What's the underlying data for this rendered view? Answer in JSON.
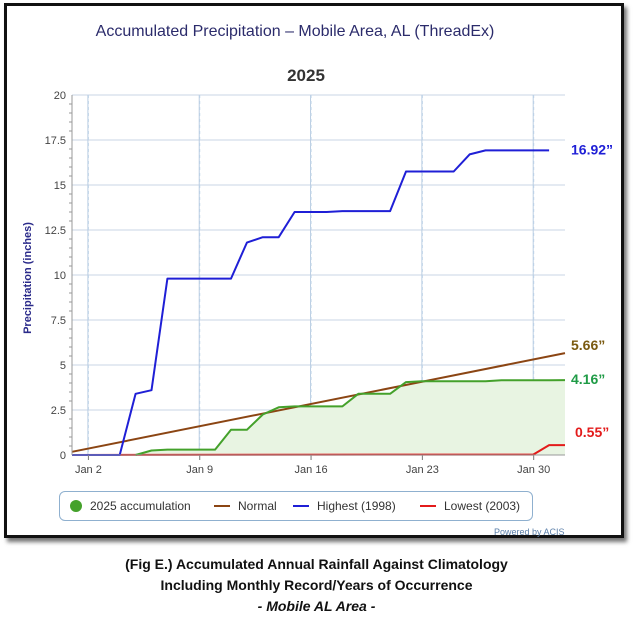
{
  "colors": {
    "accumulation": "#44a12b",
    "normal": "#8b4513",
    "highest": "#1f1fd6",
    "lowest": "#e31b1b",
    "accumulation_fill": "#e8f4e2",
    "title": "#2b2b6b",
    "axis_label": "#2b2b8a"
  },
  "chart_data": {
    "type": "line",
    "title": "Accumulated Precipitation – Mobile Area, AL (ThreadEx)",
    "subtitle": "2025",
    "ylabel": "Precipitation (inches)",
    "xlabel": "",
    "ylim": [
      0,
      20
    ],
    "yticks": [
      "0",
      "2.5",
      "5",
      "7.5",
      "10",
      "12.5",
      "15",
      "17.5",
      "20"
    ],
    "xlim": [
      1,
      31
    ],
    "xtick_days": [
      2,
      9,
      16,
      23,
      30
    ],
    "xticks": [
      "Jan 2",
      "Jan 9",
      "Jan 16",
      "Jan 23",
      "Jan 30"
    ],
    "grid": true,
    "legend_position": "bottom",
    "series": [
      {
        "name": "Highest (1998)",
        "key": "highest",
        "points": [
          [
            1,
            0
          ],
          [
            2,
            0
          ],
          [
            3,
            0
          ],
          [
            4,
            0
          ],
          [
            5,
            3.4
          ],
          [
            6,
            3.6
          ],
          [
            7,
            9.8
          ],
          [
            8,
            9.8
          ],
          [
            9,
            9.8
          ],
          [
            10,
            9.8
          ],
          [
            11,
            9.8
          ],
          [
            12,
            11.8
          ],
          [
            13,
            12.1
          ],
          [
            14,
            12.1
          ],
          [
            15,
            13.5
          ],
          [
            16,
            13.5
          ],
          [
            17,
            13.5
          ],
          [
            18,
            13.55
          ],
          [
            19,
            13.55
          ],
          [
            20,
            13.55
          ],
          [
            21,
            13.55
          ],
          [
            22,
            15.75
          ],
          [
            23,
            15.75
          ],
          [
            24,
            15.75
          ],
          [
            25,
            15.75
          ],
          [
            26,
            16.7
          ],
          [
            27,
            16.92
          ],
          [
            28,
            16.92
          ],
          [
            29,
            16.92
          ],
          [
            30,
            16.92
          ],
          [
            31,
            16.92
          ]
        ]
      },
      {
        "name": "Lowest (2003)",
        "key": "lowest",
        "points": [
          [
            1,
            0
          ],
          [
            22,
            0.02
          ],
          [
            30,
            0.02
          ],
          [
            31,
            0.55
          ],
          [
            32,
            0.55
          ]
        ]
      },
      {
        "name": "Normal",
        "key": "normal",
        "points": [
          [
            1,
            0.18
          ],
          [
            32,
            5.66
          ]
        ]
      },
      {
        "name": "2025 accumulation",
        "key": "accumulation",
        "points": [
          [
            5,
            0
          ],
          [
            6,
            0.25
          ],
          [
            7,
            0.3
          ],
          [
            8,
            0.3
          ],
          [
            9,
            0.3
          ],
          [
            10,
            0.3
          ],
          [
            11,
            1.4
          ],
          [
            12,
            1.4
          ],
          [
            13,
            2.25
          ],
          [
            14,
            2.65
          ],
          [
            15,
            2.7
          ],
          [
            16,
            2.7
          ],
          [
            17,
            2.7
          ],
          [
            18,
            2.7
          ],
          [
            19,
            3.4
          ],
          [
            20,
            3.4
          ],
          [
            21,
            3.4
          ],
          [
            22,
            4.05
          ],
          [
            23,
            4.1
          ],
          [
            24,
            4.1
          ],
          [
            25,
            4.1
          ],
          [
            26,
            4.1
          ],
          [
            27,
            4.1
          ],
          [
            28,
            4.15
          ],
          [
            29,
            4.15
          ],
          [
            30,
            4.15
          ],
          [
            31,
            4.15
          ],
          [
            32,
            4.16
          ]
        ]
      }
    ],
    "end_labels": [
      {
        "key": "highest",
        "text": "16.92”",
        "value": 16.92
      },
      {
        "key": "normal",
        "text": "5.66”",
        "value": 5.66
      },
      {
        "key": "accumulation",
        "text": "4.16”",
        "value": 4.16
      },
      {
        "key": "lowest",
        "text": "0.55”",
        "value": 0.55
      }
    ]
  },
  "legend": [
    {
      "key": "accumulation",
      "label": "2025 accumulation",
      "marker": "dot"
    },
    {
      "key": "normal",
      "label": "Normal",
      "marker": "line"
    },
    {
      "key": "highest",
      "label": "Highest (1998)",
      "marker": "line"
    },
    {
      "key": "lowest",
      "label": "Lowest (2003)",
      "marker": "line"
    }
  ],
  "powered_by": "Powered by ACIS",
  "caption": {
    "line1": "(Fig E.) Accumulated Annual Rainfall Against  Climatology",
    "line2": "Including Monthly Record/Years of Occurrence",
    "line3": "- Mobile AL Area -"
  }
}
